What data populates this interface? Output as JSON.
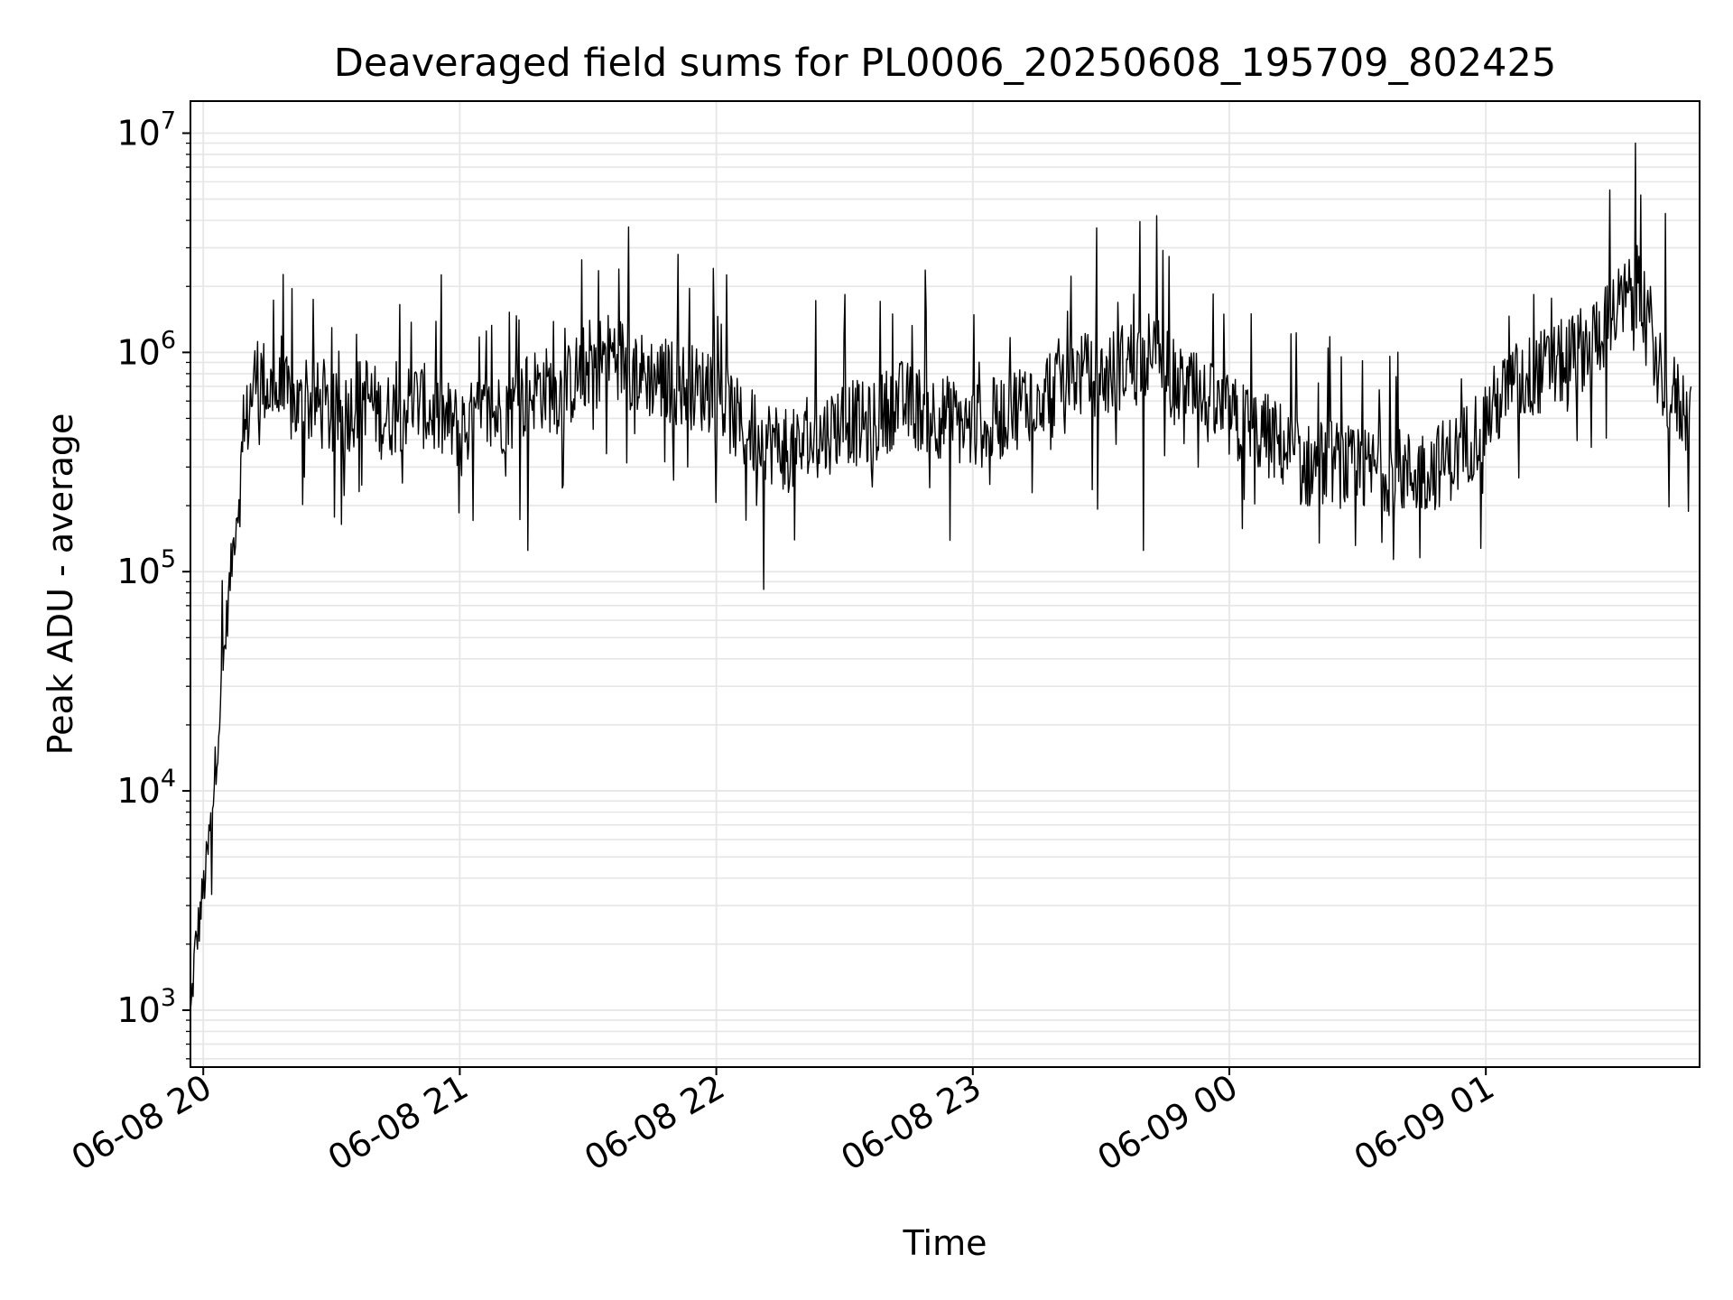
{
  "chart_data": {
    "type": "line",
    "title": "Deaveraged field sums for PL0006_20250608_195709_802425",
    "xlabel": "Time",
    "ylabel": "Peak ADU - average",
    "x_scale": "time",
    "y_scale": "log",
    "xlim": [
      "2025-06-08 19:57",
      "2025-06-09 01:50"
    ],
    "ylim": [
      550,
      14000000
    ],
    "grid": true,
    "line_color": "#000000",
    "grid_color": "#e6e6e6",
    "x_ticks": [
      {
        "t": "2025-06-08 20:00",
        "label": "06-08 20"
      },
      {
        "t": "2025-06-08 21:00",
        "label": "06-08 21"
      },
      {
        "t": "2025-06-08 22:00",
        "label": "06-08 22"
      },
      {
        "t": "2025-06-08 23:00",
        "label": "06-08 23"
      },
      {
        "t": "2025-06-09 00:00",
        "label": "06-09 00"
      },
      {
        "t": "2025-06-09 01:00",
        "label": "06-09 01"
      }
    ],
    "y_ticks": [
      {
        "value": 1000,
        "base": "10",
        "exp": "3"
      },
      {
        "value": 10000,
        "base": "10",
        "exp": "4"
      },
      {
        "value": 100000,
        "base": "10",
        "exp": "5"
      },
      {
        "value": 1000000,
        "base": "10",
        "exp": "6"
      },
      {
        "value": 10000000,
        "base": "10",
        "exp": "7"
      }
    ],
    "series": [
      {
        "x": [
          "2025-06-08 19:57",
          "2025-06-08 19:58",
          "2025-06-08 19:59",
          "2025-06-08 20:00",
          "2025-06-08 20:01",
          "2025-06-08 20:02",
          "2025-06-08 20:03",
          "2025-06-08 20:04",
          "2025-06-08 20:05",
          "2025-06-08 20:06",
          "2025-06-08 20:07",
          "2025-06-08 20:08",
          "2025-06-08 20:09",
          "2025-06-08 20:10",
          "2025-06-08 20:11",
          "2025-06-08 20:12",
          "2025-06-08 20:13",
          "2025-06-08 20:15",
          "2025-06-08 20:17",
          "2025-06-08 20:20",
          "2025-06-08 20:23",
          "2025-06-08 20:26",
          "2025-06-08 20:30",
          "2025-06-08 20:34",
          "2025-06-08 20:38",
          "2025-06-08 20:42",
          "2025-06-08 20:46",
          "2025-06-08 20:50",
          "2025-06-08 20:55",
          "2025-06-08 21:00",
          "2025-06-08 21:06",
          "2025-06-08 21:12",
          "2025-06-08 21:18",
          "2025-06-08 21:24",
          "2025-06-08 21:30",
          "2025-06-08 21:36",
          "2025-06-08 21:42",
          "2025-06-08 21:48",
          "2025-06-08 21:54",
          "2025-06-08 22:00",
          "2025-06-08 22:06",
          "2025-06-08 22:12",
          "2025-06-08 22:18",
          "2025-06-08 22:24",
          "2025-06-08 22:30",
          "2025-06-08 22:36",
          "2025-06-08 22:42",
          "2025-06-08 22:48",
          "2025-06-08 22:54",
          "2025-06-08 23:00",
          "2025-06-08 23:06",
          "2025-06-08 23:12",
          "2025-06-08 23:18",
          "2025-06-08 23:24",
          "2025-06-08 23:30",
          "2025-06-08 23:36",
          "2025-06-08 23:42",
          "2025-06-08 23:48",
          "2025-06-08 23:54",
          "2025-06-09 00:00",
          "2025-06-09 00:06",
          "2025-06-09 00:12",
          "2025-06-09 00:18",
          "2025-06-09 00:24",
          "2025-06-09 00:30",
          "2025-06-09 00:36",
          "2025-06-09 00:42",
          "2025-06-09 00:48",
          "2025-06-09 00:54",
          "2025-06-09 01:00",
          "2025-06-09 01:06",
          "2025-06-09 01:12",
          "2025-06-09 01:18",
          "2025-06-09 01:24",
          "2025-06-09 01:30",
          "2025-06-09 01:36",
          "2025-06-09 01:42",
          "2025-06-09 01:48"
        ],
        "y": [
          900,
          1800,
          2500,
          3500,
          5000,
          8000,
          14000,
          25000,
          45000,
          80000,
          130000,
          200000,
          300000,
          450000,
          600000,
          750000,
          800000,
          700000,
          650000,
          600000,
          550000,
          600000,
          500000,
          550000,
          650000,
          500000,
          550000,
          600000,
          500000,
          450000,
          500000,
          550000,
          700000,
          650000,
          900000,
          1000000,
          800000,
          750000,
          700000,
          650000,
          450000,
          400000,
          350000,
          400000,
          500000,
          450000,
          600000,
          550000,
          500000,
          450000,
          500000,
          600000,
          700000,
          800000,
          750000,
          900000,
          1000000,
          700000,
          600000,
          500000,
          450000,
          380000,
          300000,
          320000,
          280000,
          300000,
          280000,
          300000,
          350000,
          500000,
          700000,
          800000,
          900000,
          1100000,
          1500000,
          2000000,
          700000,
          500000
        ],
        "peaks": [
          {
            "t": "2025-06-08 21:51",
            "y": 2800000
          },
          {
            "t": "2025-06-08 23:29",
            "y": 3700000
          },
          {
            "t": "2025-06-08 23:43",
            "y": 4200000
          },
          {
            "t": "2025-06-09 01:29",
            "y": 5500000
          },
          {
            "t": "2025-06-09 01:35",
            "y": 9000000
          },
          {
            "t": "2025-06-09 01:42",
            "y": 4300000
          }
        ],
        "dips": [
          {
            "t": "2025-06-08 21:16",
            "y": 125000
          },
          {
            "t": "2025-06-08 22:11",
            "y": 83000
          },
          {
            "t": "2025-06-08 23:40",
            "y": 125000
          },
          {
            "t": "2025-06-09 00:21",
            "y": 135000
          }
        ]
      }
    ]
  }
}
